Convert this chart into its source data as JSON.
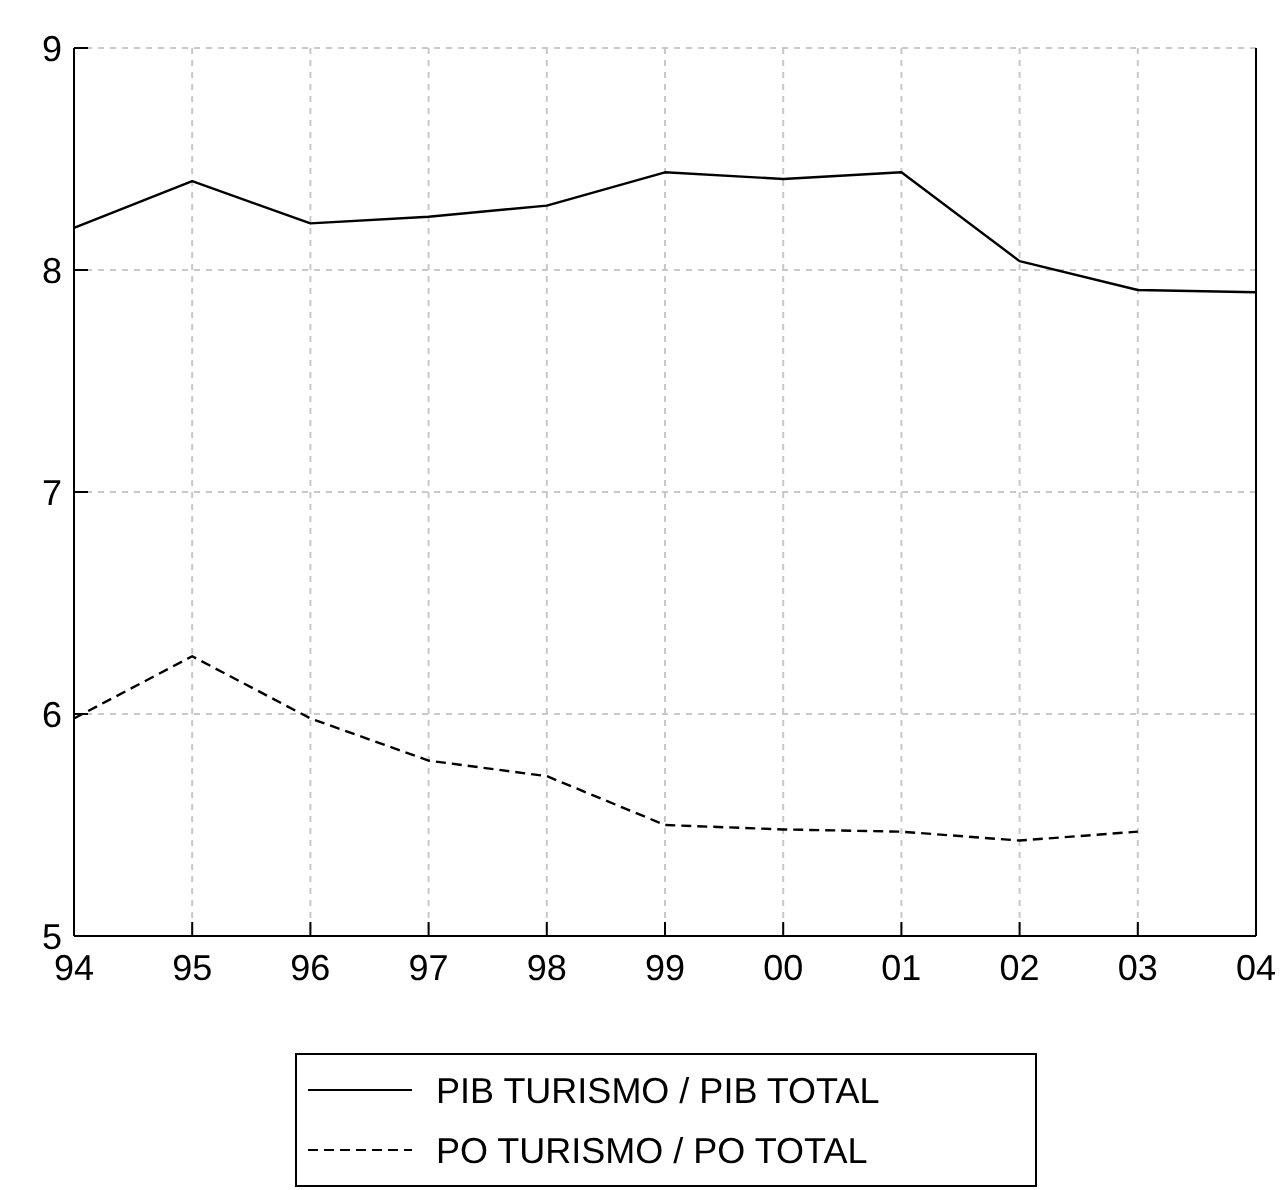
{
  "chart_data": {
    "type": "line",
    "categories": [
      "94",
      "95",
      "96",
      "97",
      "98",
      "99",
      "00",
      "01",
      "02",
      "03",
      "04"
    ],
    "series": [
      {
        "name": "PIB TURISMO / PIB TOTAL",
        "color": "#000000",
        "line_style": "solid",
        "values": [
          8.19,
          8.4,
          8.21,
          8.24,
          8.29,
          8.44,
          8.41,
          8.44,
          8.04,
          7.91,
          7.9
        ]
      },
      {
        "name": "PO TURISMO / PO TOTAL",
        "color": "#000000",
        "line_style": "dashed",
        "values": [
          5.98,
          6.26,
          5.98,
          5.79,
          5.72,
          5.5,
          5.48,
          5.47,
          5.43,
          5.47,
          null
        ]
      }
    ],
    "ylim": [
      5,
      9
    ],
    "yticks": [
      5,
      6,
      7,
      8,
      9
    ],
    "grid": true,
    "legend": "bottom",
    "marker": "none"
  }
}
